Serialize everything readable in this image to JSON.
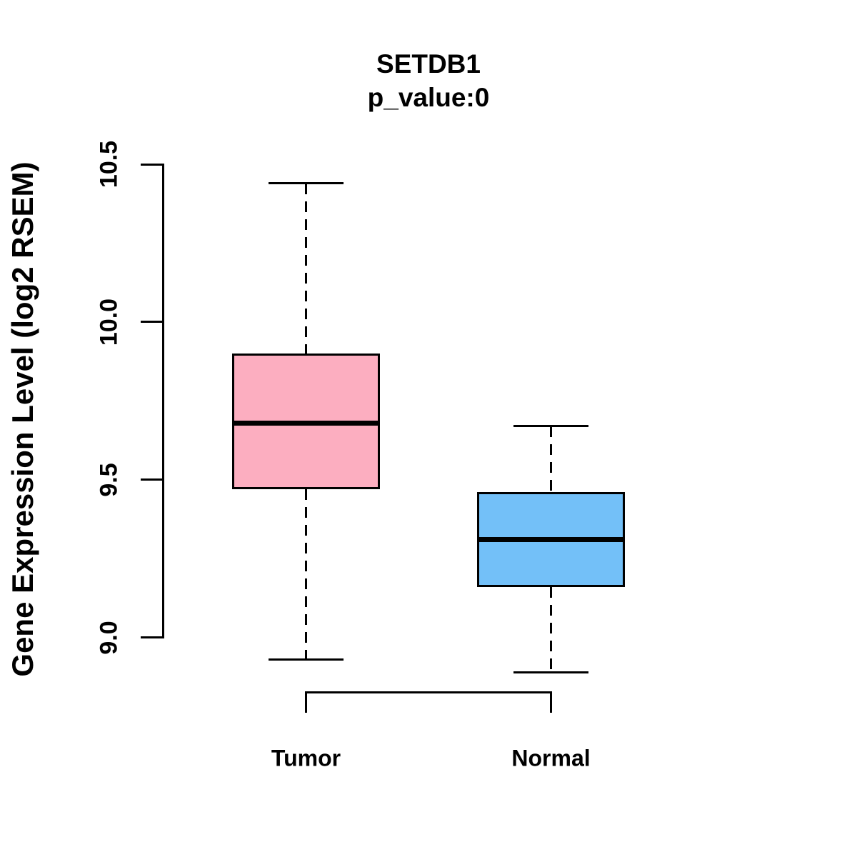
{
  "header": {
    "title": "SETDB1",
    "subtitle": "p_value:0"
  },
  "chart_data": {
    "type": "boxplot",
    "title": "SETDB1",
    "subtitle": "p_value:0",
    "xlabel": "",
    "ylabel": "Gene Expression Level (log2 RSEM)",
    "categories": [
      "Tumor",
      "Normal"
    ],
    "ylim": [
      9.0,
      10.5
    ],
    "yticks": [
      10.5,
      10.0,
      9.5,
      9.0
    ],
    "ytick_labels": [
      "10.5",
      "10.0",
      "9.5",
      "9.0"
    ],
    "grid": "off",
    "legend": "none",
    "series": [
      {
        "name": "Tumor",
        "color": "#FCAEC0",
        "whisker_low": 8.93,
        "q1": 9.47,
        "median": 9.68,
        "q3": 9.9,
        "whisker_high": 10.44
      },
      {
        "name": "Normal",
        "color": "#73C0F8",
        "whisker_low": 8.89,
        "q1": 9.16,
        "median": 9.31,
        "q3": 9.46,
        "whisker_high": 9.67
      }
    ],
    "colors": {
      "line": "#000000",
      "background": "#FFFFFF",
      "tumor_fill": "#FCAEC0",
      "normal_fill": "#73C0F8"
    }
  }
}
